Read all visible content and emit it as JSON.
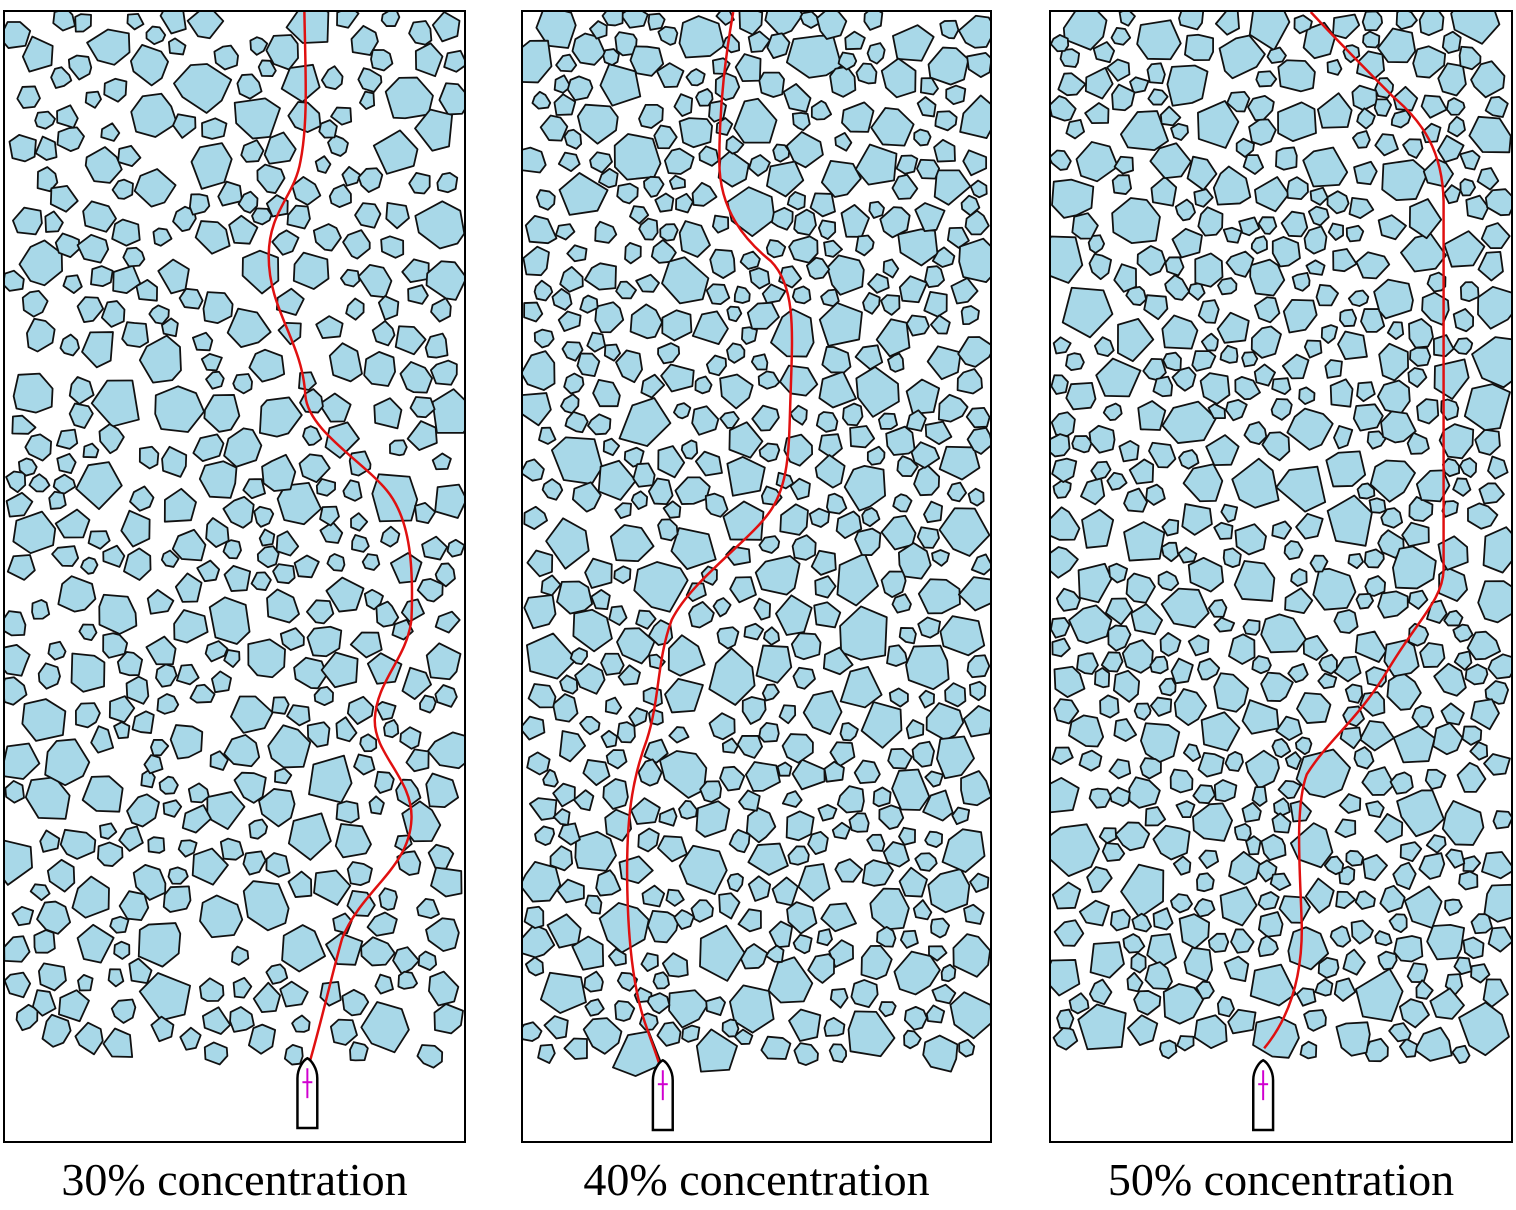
{
  "panels": [
    {
      "caption": "30% concentration",
      "concentration": 0.3,
      "ice_color": "#a8d8e8",
      "path_color": "#e01010"
    },
    {
      "caption": "40% concentration",
      "concentration": 0.4,
      "ice_color": "#a8d8e8",
      "path_color": "#e01010"
    },
    {
      "caption": "50% concentration",
      "concentration": 0.5,
      "ice_color": "#a8d8e8",
      "path_color": "#e01010"
    }
  ],
  "ship_icon": "ship-icon",
  "floe_icon": "ice-floe-icon"
}
